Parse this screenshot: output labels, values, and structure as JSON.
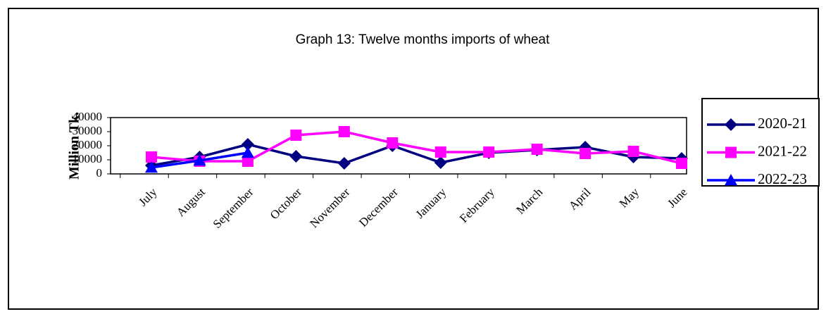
{
  "chart_data": {
    "type": "line",
    "title": "Graph 13: Twelve months imports of wheat",
    "y_label": "Million Tk.",
    "categories": [
      "July",
      "August",
      "September",
      "October",
      "November",
      "December",
      "January",
      "February",
      "March",
      "April",
      "May",
      "June"
    ],
    "series": [
      {
        "name": "2020-21",
        "color": "#000080",
        "marker": "diamond",
        "values": [
          6000,
          12000,
          21000,
          12500,
          7500,
          20000,
          8000,
          15000,
          17000,
          19000,
          12000,
          11000
        ]
      },
      {
        "name": "2021-22",
        "color": "#ff00ff",
        "marker": "square",
        "values": [
          12000,
          9000,
          9000,
          27500,
          30000,
          22000,
          15500,
          15500,
          17500,
          14500,
          16000,
          7500
        ]
      },
      {
        "name": "2022-23",
        "color": "#0000ff",
        "marker": "triangle",
        "values": [
          4500,
          9500,
          15000,
          null,
          null,
          null,
          null,
          null,
          null,
          null,
          null,
          null
        ]
      }
    ],
    "ylim": [
      0,
      40000
    ],
    "yticks": [
      0,
      10000,
      20000,
      30000,
      40000
    ],
    "legend": "right"
  }
}
